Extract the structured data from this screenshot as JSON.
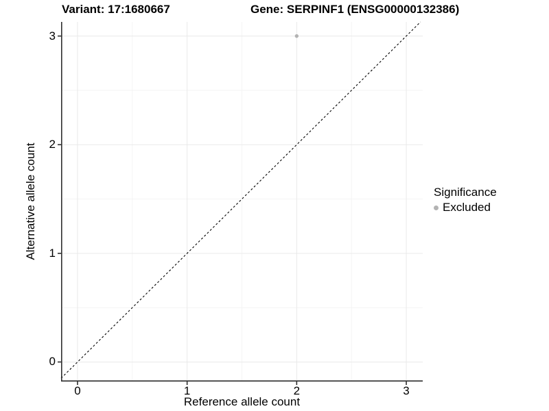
{
  "header": {
    "variant_title": "Variant: 17:1680667",
    "gene_title": "Gene: SERPINF1 (ENSG00000132386)"
  },
  "chart_data": {
    "type": "scatter",
    "title": "Variant: 17:1680667 / Gene: SERPINF1 (ENSG00000132386)",
    "xlabel": "Reference allele count",
    "ylabel": "Alternative allele count",
    "xlim": [
      -0.15,
      3.15
    ],
    "ylim": [
      -0.18,
      3.13
    ],
    "x_ticks": [
      0,
      1,
      2,
      3
    ],
    "x_minor_ticks": [
      0.5,
      1.5,
      2.5
    ],
    "y_ticks": [
      0,
      1,
      2,
      3
    ],
    "y_minor_ticks": [
      0.5,
      1.5,
      2.5
    ],
    "grid": "major and minor gridlines on white panel",
    "identity_line": {
      "equation": "y = x",
      "style": "dashed",
      "color": "#000000"
    },
    "legend": {
      "title": "Significance",
      "position": "right",
      "entries": [
        {
          "label": "Excluded",
          "color": "#b3b3b3"
        }
      ]
    },
    "series": [
      {
        "name": "Excluded",
        "color": "#b3b3b3",
        "points": [
          {
            "x": 2,
            "y": 3
          }
        ]
      }
    ]
  },
  "colors": {
    "background": "#ffffff",
    "grid_major": "#e9e9e9",
    "grid_minor": "#f4f4f4",
    "axis_line": "#2e2e2e",
    "text": "#000000",
    "point": "#b3b3b3",
    "dashed_line": "#000000"
  }
}
